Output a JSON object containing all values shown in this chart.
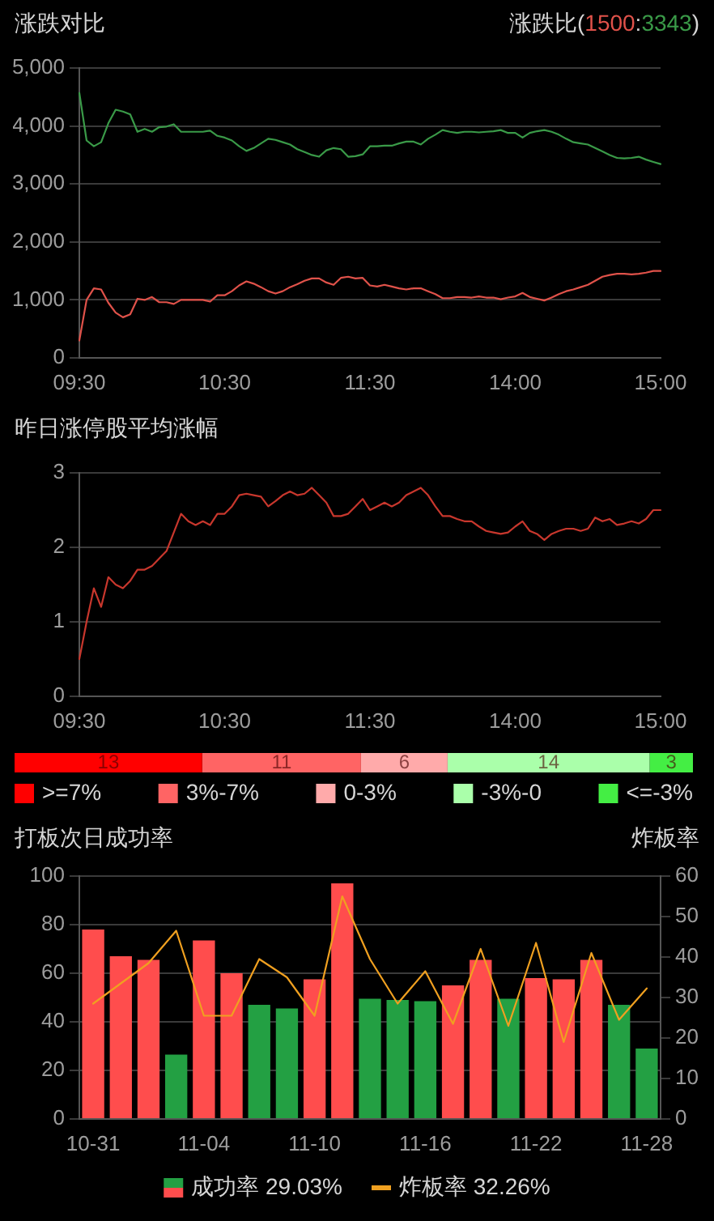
{
  "chart_data": [
    {
      "type": "line",
      "title": "涨跌对比",
      "subtitle": "涨跌比(1500:3343)",
      "categories": [
        "09:30",
        null,
        null,
        null,
        null,
        null,
        null,
        null,
        null,
        null,
        null,
        null,
        null,
        null,
        null,
        null,
        null,
        null,
        null,
        null,
        "10:30",
        null,
        null,
        null,
        null,
        null,
        null,
        null,
        null,
        null,
        null,
        null,
        null,
        null,
        null,
        null,
        null,
        null,
        null,
        null,
        "11:30",
        null,
        null,
        null,
        null,
        null,
        null,
        null,
        null,
        null,
        null,
        null,
        null,
        null,
        null,
        null,
        null,
        null,
        null,
        null,
        "14:00",
        null,
        null,
        null,
        null,
        null,
        null,
        null,
        null,
        null,
        null,
        null,
        null,
        null,
        null,
        null,
        null,
        null,
        null,
        null,
        "15:00"
      ],
      "series": [
        {
          "color": "#e0524a",
          "values": [
            300,
            1000,
            1200,
            1180,
            950,
            780,
            700,
            750,
            1020,
            1000,
            1050,
            960,
            960,
            930,
            1000,
            1000,
            1000,
            1000,
            970,
            1080,
            1080,
            1150,
            1250,
            1320,
            1280,
            1220,
            1150,
            1110,
            1150,
            1220,
            1270,
            1330,
            1370,
            1370,
            1300,
            1260,
            1380,
            1400,
            1370,
            1380,
            1250,
            1230,
            1260,
            1230,
            1200,
            1180,
            1200,
            1200,
            1150,
            1100,
            1030,
            1030,
            1050,
            1050,
            1040,
            1060,
            1040,
            1040,
            1010,
            1040,
            1060,
            1120,
            1050,
            1020,
            990,
            1040,
            1100,
            1150,
            1180,
            1220,
            1260,
            1330,
            1400,
            1430,
            1450,
            1450,
            1440,
            1450,
            1470,
            1500,
            1500
          ]
        },
        {
          "color": "#3a9a48",
          "values": [
            4570,
            3750,
            3650,
            3720,
            4050,
            4280,
            4250,
            4200,
            3900,
            3950,
            3900,
            3980,
            3990,
            4030,
            3900,
            3900,
            3900,
            3900,
            3920,
            3830,
            3800,
            3750,
            3650,
            3570,
            3620,
            3700,
            3780,
            3760,
            3720,
            3680,
            3600,
            3550,
            3500,
            3470,
            3580,
            3620,
            3600,
            3470,
            3480,
            3510,
            3650,
            3650,
            3660,
            3660,
            3700,
            3730,
            3730,
            3680,
            3780,
            3850,
            3930,
            3900,
            3880,
            3900,
            3900,
            3890,
            3900,
            3910,
            3930,
            3880,
            3880,
            3800,
            3880,
            3910,
            3930,
            3900,
            3850,
            3780,
            3720,
            3700,
            3680,
            3620,
            3560,
            3500,
            3450,
            3440,
            3450,
            3470,
            3420,
            3380,
            3343
          ]
        }
      ],
      "ylim": [
        0,
        5000
      ],
      "yticks": [
        0,
        {
          "value": 1000,
          "label": "1,000"
        },
        {
          "value": 2000,
          "label": "2,000"
        },
        {
          "value": 3000,
          "label": "3,000"
        },
        {
          "value": 4000,
          "label": "4,000"
        },
        {
          "value": 5000,
          "label": "5,000"
        }
      ],
      "grid": "y"
    },
    {
      "type": "line",
      "title": "昨日涨停股平均涨幅",
      "categories": [
        "09:30",
        null,
        null,
        null,
        null,
        null,
        null,
        null,
        null,
        null,
        null,
        null,
        null,
        null,
        null,
        null,
        null,
        null,
        null,
        null,
        "10:30",
        null,
        null,
        null,
        null,
        null,
        null,
        null,
        null,
        null,
        null,
        null,
        null,
        null,
        null,
        null,
        null,
        null,
        null,
        null,
        "11:30",
        null,
        null,
        null,
        null,
        null,
        null,
        null,
        null,
        null,
        null,
        null,
        null,
        null,
        null,
        null,
        null,
        null,
        null,
        null,
        "14:00",
        null,
        null,
        null,
        null,
        null,
        null,
        null,
        null,
        null,
        null,
        null,
        null,
        null,
        null,
        null,
        null,
        null,
        null,
        null,
        "15:00"
      ],
      "series": [
        {
          "color": "#c8372d",
          "values": [
            0.5,
            1.0,
            1.45,
            1.2,
            1.6,
            1.5,
            1.45,
            1.55,
            1.7,
            1.7,
            1.75,
            1.85,
            1.95,
            2.2,
            2.45,
            2.35,
            2.3,
            2.35,
            2.3,
            2.45,
            2.45,
            2.55,
            2.7,
            2.72,
            2.7,
            2.68,
            2.55,
            2.62,
            2.7,
            2.75,
            2.7,
            2.72,
            2.8,
            2.7,
            2.6,
            2.42,
            2.42,
            2.45,
            2.55,
            2.65,
            2.5,
            2.55,
            2.6,
            2.55,
            2.6,
            2.7,
            2.75,
            2.8,
            2.7,
            2.55,
            2.42,
            2.42,
            2.38,
            2.35,
            2.35,
            2.28,
            2.22,
            2.2,
            2.18,
            2.2,
            2.28,
            2.35,
            2.22,
            2.18,
            2.1,
            2.18,
            2.22,
            2.25,
            2.25,
            2.22,
            2.25,
            2.4,
            2.35,
            2.38,
            2.3,
            2.32,
            2.35,
            2.32,
            2.38,
            2.5,
            2.5
          ]
        }
      ],
      "ylim": [
        0,
        3
      ],
      "yticks": [
        0,
        1,
        2,
        3
      ],
      "grid": "y"
    },
    {
      "type": "bar",
      "orientation": "horizontal",
      "stacked": true,
      "categories": [
        null
      ],
      "series": [
        {
          "name": ">=7%",
          "color": "#ff0000",
          "values": [
            13
          ]
        },
        {
          "name": "3%-7%",
          "color": "#ff6464",
          "values": [
            11
          ]
        },
        {
          "name": "0-3%",
          "color": "#ffaaaa",
          "values": [
            6
          ]
        },
        {
          "name": "-3%-0",
          "color": "#aaffaa",
          "values": [
            14
          ]
        },
        {
          "name": "<=-3%",
          "color": "#44ee44",
          "values": [
            3
          ]
        }
      ],
      "data_labels": true,
      "legend": "bottom",
      "tick_labels": false
    },
    {
      "type": "bar",
      "title": "打板次日成功率",
      "y2label": "炸板率",
      "categories": [
        "10-31",
        null,
        null,
        null,
        "11-04",
        null,
        null,
        null,
        "11-10",
        null,
        null,
        null,
        "11-16",
        null,
        null,
        null,
        "11-22",
        null,
        null,
        null,
        "11-28"
      ],
      "series": [
        {
          "name": "成功率 29.03%",
          "colors": [
            "#ff4d4d",
            "#ff4d4d",
            "#ff4d4d",
            "#23a043",
            "#ff4d4d",
            "#ff4d4d",
            "#23a043",
            "#23a043",
            "#ff4d4d",
            "#ff4d4d",
            "#23a043",
            "#23a043",
            "#23a043",
            "#ff4d4d",
            "#ff4d4d",
            "#23a043",
            "#ff4d4d",
            "#ff4d4d",
            "#ff4d4d",
            "#23a043",
            "#23a043"
          ],
          "values": [
            78,
            67,
            65.5,
            26.5,
            73.5,
            60,
            47,
            45.5,
            57.5,
            97,
            49.5,
            49,
            48.5,
            55,
            65.5,
            49.5,
            58,
            57.5,
            65.5,
            47,
            29.03
          ]
        },
        {
          "name": "炸板率 32.26%",
          "type": "line",
          "axis": "y2",
          "color": "#f0a020",
          "values": [
            28.5,
            33.5,
            38.5,
            46.5,
            25.5,
            25.5,
            39.5,
            35,
            25.5,
            55,
            39.5,
            28.5,
            36.5,
            23.5,
            42,
            23,
            43.5,
            19,
            41,
            24.5,
            32.26
          ]
        }
      ],
      "ylim": [
        0,
        100
      ],
      "yticks": [
        0,
        20,
        40,
        60,
        80,
        100
      ],
      "y2lim": [
        0,
        60
      ],
      "y2ticks": [
        0,
        10,
        20,
        30,
        40,
        50,
        60
      ],
      "grid": "y",
      "legend": "bottom"
    }
  ]
}
